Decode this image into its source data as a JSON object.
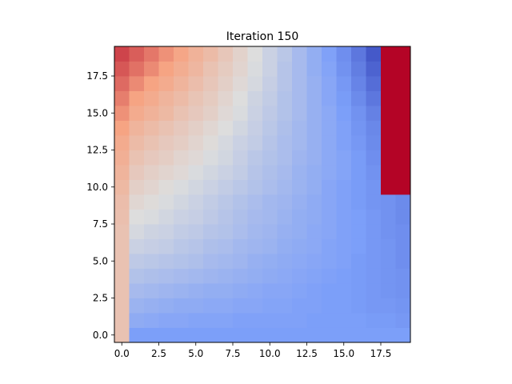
{
  "chart_data": {
    "type": "heatmap",
    "title": "Iteration 150",
    "xlabel": "",
    "ylabel": "",
    "colormap": "coolwarm",
    "vmin": 0,
    "vmax": 1,
    "origin": "lower",
    "xlim": [
      -0.5,
      19.5
    ],
    "ylim": [
      -0.5,
      19.5
    ],
    "xticks": [
      0,
      2.5,
      5,
      7.5,
      10,
      12.5,
      15,
      17.5
    ],
    "xtick_labels": [
      "0.0",
      "2.5",
      "5.0",
      "7.5",
      "10.0",
      "12.5",
      "15.0",
      "17.5"
    ],
    "yticks": [
      0,
      2.5,
      5,
      7.5,
      10,
      12.5,
      15,
      17.5
    ],
    "ytick_labels": [
      "0.0",
      "2.5",
      "5.0",
      "7.5",
      "10.0",
      "12.5",
      "15.0",
      "17.5"
    ],
    "grid": false,
    "values": [
      [
        0.62,
        0.25,
        0.25,
        0.25,
        0.25,
        0.25,
        0.25,
        0.25,
        0.25,
        0.25,
        0.25,
        0.25,
        0.25,
        0.25,
        0.25,
        0.25,
        0.25,
        0.25,
        0.25,
        0.25
      ],
      [
        0.62,
        0.3,
        0.29,
        0.28,
        0.28,
        0.27,
        0.27,
        0.27,
        0.26,
        0.26,
        0.26,
        0.26,
        0.26,
        0.25,
        0.25,
        0.25,
        0.25,
        0.24,
        0.24,
        0.23
      ],
      [
        0.62,
        0.33,
        0.32,
        0.31,
        0.3,
        0.3,
        0.29,
        0.29,
        0.28,
        0.28,
        0.27,
        0.27,
        0.26,
        0.26,
        0.25,
        0.25,
        0.24,
        0.23,
        0.23,
        0.22
      ],
      [
        0.62,
        0.36,
        0.35,
        0.34,
        0.33,
        0.32,
        0.31,
        0.31,
        0.3,
        0.29,
        0.28,
        0.28,
        0.27,
        0.26,
        0.25,
        0.25,
        0.24,
        0.23,
        0.22,
        0.21
      ],
      [
        0.62,
        0.39,
        0.38,
        0.37,
        0.36,
        0.35,
        0.34,
        0.33,
        0.32,
        0.31,
        0.3,
        0.29,
        0.28,
        0.27,
        0.26,
        0.25,
        0.24,
        0.23,
        0.22,
        0.21
      ],
      [
        0.62,
        0.42,
        0.41,
        0.4,
        0.39,
        0.38,
        0.36,
        0.35,
        0.34,
        0.32,
        0.31,
        0.3,
        0.29,
        0.28,
        0.27,
        0.26,
        0.24,
        0.23,
        0.22,
        0.2
      ],
      [
        0.62,
        0.45,
        0.44,
        0.43,
        0.41,
        0.4,
        0.38,
        0.37,
        0.35,
        0.34,
        0.33,
        0.31,
        0.3,
        0.29,
        0.27,
        0.26,
        0.25,
        0.23,
        0.22,
        0.2
      ],
      [
        0.62,
        0.48,
        0.46,
        0.45,
        0.43,
        0.42,
        0.4,
        0.39,
        0.37,
        0.35,
        0.34,
        0.32,
        0.31,
        0.29,
        0.28,
        0.26,
        0.25,
        0.23,
        0.21,
        0.2
      ],
      [
        0.63,
        0.5,
        0.49,
        0.47,
        0.45,
        0.44,
        0.42,
        0.4,
        0.38,
        0.36,
        0.35,
        0.33,
        0.31,
        0.3,
        0.28,
        0.26,
        0.25,
        0.23,
        0.21,
        0.19
      ],
      [
        0.64,
        0.53,
        0.51,
        0.49,
        0.47,
        0.45,
        0.43,
        0.41,
        0.39,
        0.37,
        0.35,
        0.34,
        0.32,
        0.3,
        0.28,
        0.26,
        0.24,
        0.22,
        0.21,
        0.19
      ],
      [
        0.66,
        0.56,
        0.54,
        0.51,
        0.49,
        0.47,
        0.45,
        0.43,
        0.41,
        0.39,
        0.37,
        0.35,
        0.33,
        0.31,
        0.28,
        0.26,
        0.24,
        0.22,
        1.0,
        1.0
      ],
      [
        0.68,
        0.59,
        0.56,
        0.54,
        0.52,
        0.49,
        0.47,
        0.45,
        0.43,
        0.4,
        0.38,
        0.36,
        0.33,
        0.31,
        0.29,
        0.27,
        0.24,
        0.21,
        1.0,
        1.0
      ],
      [
        0.7,
        0.62,
        0.59,
        0.57,
        0.54,
        0.52,
        0.49,
        0.47,
        0.44,
        0.41,
        0.39,
        0.37,
        0.34,
        0.32,
        0.29,
        0.27,
        0.24,
        0.2,
        1.0,
        1.0
      ],
      [
        0.72,
        0.65,
        0.62,
        0.59,
        0.57,
        0.54,
        0.51,
        0.48,
        0.45,
        0.43,
        0.4,
        0.37,
        0.35,
        0.32,
        0.29,
        0.26,
        0.23,
        0.19,
        1.0,
        1.0
      ],
      [
        0.75,
        0.68,
        0.65,
        0.62,
        0.59,
        0.56,
        0.53,
        0.5,
        0.47,
        0.44,
        0.41,
        0.38,
        0.35,
        0.32,
        0.29,
        0.26,
        0.22,
        0.18,
        1.0,
        1.0
      ],
      [
        0.78,
        0.72,
        0.69,
        0.66,
        0.62,
        0.59,
        0.56,
        0.52,
        0.49,
        0.45,
        0.42,
        0.39,
        0.36,
        0.32,
        0.29,
        0.25,
        0.21,
        0.16,
        1.0,
        1.0
      ],
      [
        0.81,
        0.75,
        0.72,
        0.68,
        0.65,
        0.61,
        0.58,
        0.54,
        0.5,
        0.46,
        0.43,
        0.39,
        0.36,
        0.32,
        0.28,
        0.24,
        0.19,
        0.13,
        1.0,
        1.0
      ],
      [
        0.84,
        0.79,
        0.75,
        0.72,
        0.68,
        0.64,
        0.6,
        0.56,
        0.52,
        0.48,
        0.44,
        0.4,
        0.36,
        0.32,
        0.28,
        0.23,
        0.17,
        0.1,
        1.0,
        1.0
      ],
      [
        0.87,
        0.83,
        0.79,
        0.75,
        0.71,
        0.67,
        0.62,
        0.58,
        0.54,
        0.49,
        0.45,
        0.4,
        0.36,
        0.31,
        0.27,
        0.21,
        0.15,
        0.07,
        1.0,
        1.0
      ],
      [
        0.9,
        0.86,
        0.82,
        0.78,
        0.74,
        0.69,
        0.65,
        0.6,
        0.55,
        0.5,
        0.45,
        0.41,
        0.36,
        0.31,
        0.26,
        0.2,
        0.13,
        0.04,
        1.0,
        1.0
      ]
    ]
  }
}
